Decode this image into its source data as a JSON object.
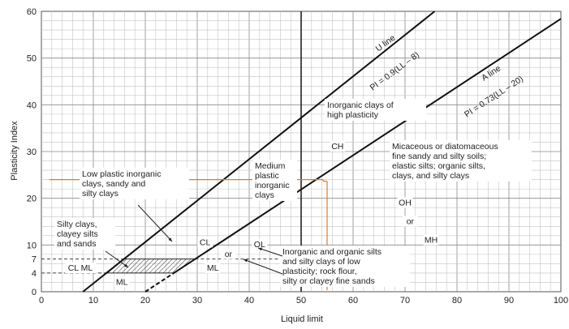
{
  "chart_data": {
    "type": "line",
    "title": "",
    "xlabel": "Liquid limit",
    "ylabel": "Plasticity Index",
    "xlim": [
      0,
      100
    ],
    "ylim": [
      0,
      60
    ],
    "x_ticks": [
      "0",
      "10",
      "20",
      "30",
      "40",
      "50",
      "60",
      "70",
      "80",
      "90",
      "100"
    ],
    "y_ticks": [
      "0",
      "4",
      "7",
      "10",
      "20",
      "30",
      "40",
      "50",
      "60"
    ],
    "grid": true,
    "series": [
      {
        "name": "U line",
        "equation": "PI = 0.9(LL – 8)",
        "x": [
          8,
          75.7
        ],
        "y": [
          0,
          60
        ]
      },
      {
        "name": "A line",
        "equation": "PI = 0.73(LL – 20)",
        "x": [
          20,
          25.5,
          100
        ],
        "y": [
          0,
          4,
          58.4
        ]
      }
    ],
    "vertical_line": {
      "x": 50
    },
    "orange_marker": {
      "x": 55,
      "y": 24
    },
    "annotations": [
      {
        "label": "CL",
        "x": 31.5,
        "y": 10
      },
      {
        "label": "OL",
        "x": 42,
        "y": 9.5
      },
      {
        "label": "or",
        "x": 36,
        "y": 7.5
      },
      {
        "label": "ML",
        "x": 33,
        "y": 4.5
      },
      {
        "label": "ML",
        "x": 15.5,
        "y": 1.5
      },
      {
        "label": "CL ML",
        "x": 7.5,
        "y": 4.5
      },
      {
        "label": "CH",
        "x": 57,
        "y": 30.5
      },
      {
        "label": "OH",
        "x": 70,
        "y": 18.5
      },
      {
        "label": "or",
        "x": 71,
        "y": 14.5
      },
      {
        "label": "MH",
        "x": 75,
        "y": 10.5
      }
    ],
    "notes": [
      {
        "lines": [
          "Inorganic clays of",
          "high plasticity"
        ]
      },
      {
        "lines": [
          "Medium",
          "plastic",
          "inorganic",
          "clays"
        ]
      },
      {
        "lines": [
          "Low plastic inorganic",
          "clays, sandy and",
          "silty clays"
        ]
      },
      {
        "lines": [
          "Silty clays,",
          "clayey silts",
          "and sands"
        ]
      },
      {
        "lines": [
          "Micaceous or diatomaceous",
          "fine sandy and silty soils;",
          "elastic silts; organic silts,",
          "clays, and silty clays"
        ]
      },
      {
        "lines": [
          "Inorganic and organic silts",
          "and silty clays of low",
          "plasticity; rock flour,",
          "silty or clayey fine sands"
        ]
      }
    ]
  }
}
